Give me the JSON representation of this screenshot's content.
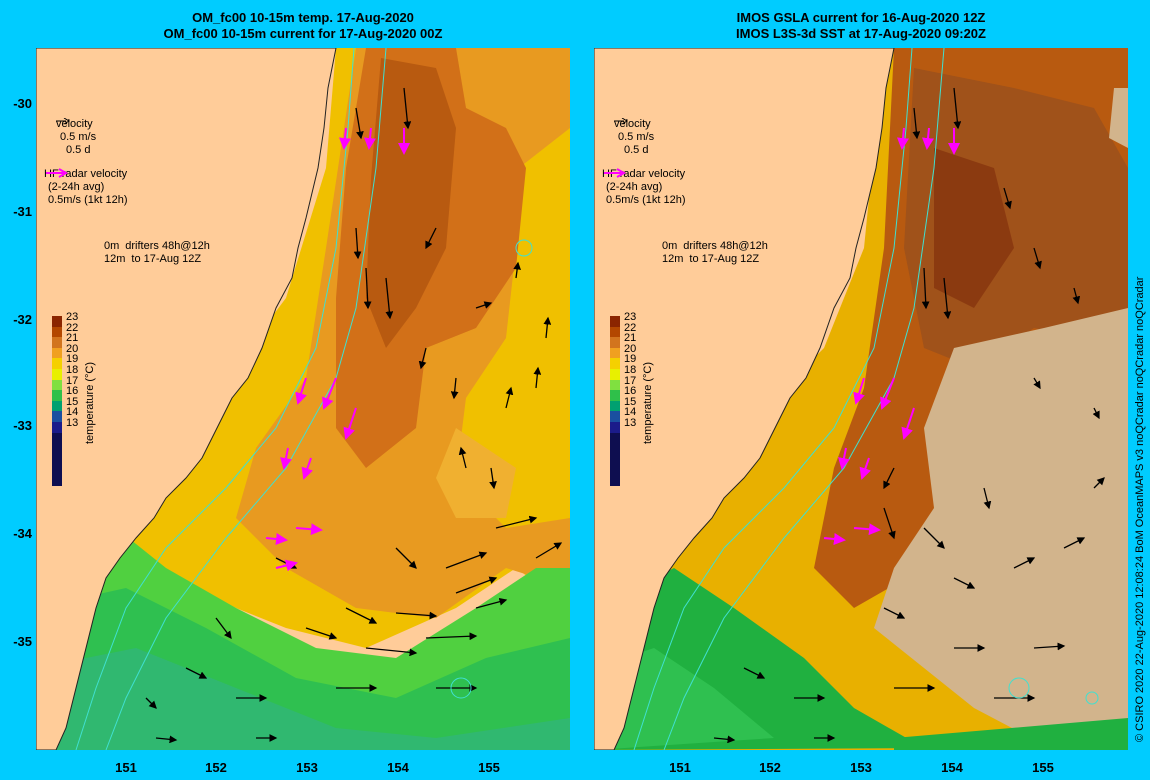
{
  "titles": {
    "left_line1": "OM_fc00 10-15m temp. 17-Aug-2020",
    "left_line2": "OM_fc00 10-15m current for 17-Aug-2020 00Z",
    "right_line1": "IMOS GSLA current for 16-Aug-2020 12Z",
    "right_line2": "IMOS L3S-3d SST at 17-Aug-2020 09:20Z"
  },
  "lat_labels": [
    "-30",
    "-31",
    "-32",
    "-33",
    "-34",
    "-35"
  ],
  "lon_labels": [
    "151",
    "152",
    "153",
    "154",
    "155"
  ],
  "legend": {
    "velocity_title": "velocity",
    "velocity_scale": "0.5 m/s",
    "velocity_time": "0.5 d",
    "hf_title": "HF radar velocity",
    "hf_avg": "(2-24h avg)",
    "hf_scale": "0.5m/s (1kt 12h)",
    "drifter_0m": "0m",
    "drifter_text1": "drifters 48h@12h",
    "drifter_12m": "12m",
    "drifter_text2": "to 17-Aug 12Z"
  },
  "colorbar": {
    "title": "temperature (°C)",
    "ticks": [
      "23",
      "22",
      "21",
      "20",
      "19",
      "18",
      "17",
      "16",
      "15",
      "14",
      "13"
    ],
    "colors": [
      "#8b2500",
      "#b34700",
      "#d2741e",
      "#f0a020",
      "#f5d000",
      "#e8f000",
      "#80e040",
      "#2fc04a",
      "#00a070",
      "#1a4fa0",
      "#1b1b8a"
    ]
  },
  "land_color": "#ffcc99",
  "cloud_color": "#d2b48c",
  "credit": "© CSIRO 2020   22-Aug-2020 12:08:24 BoM OceanMAPS v3 noQCradar noQCradar noQCradar"
}
